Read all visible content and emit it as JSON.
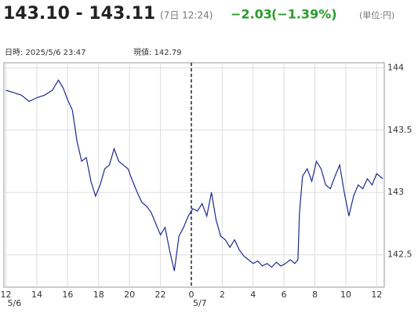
{
  "header": {
    "quote": "143.10 - 143.11",
    "time": "(7日 12:24)",
    "change": "−2.03",
    "change_pct": "(−1.39%)",
    "unit": "(単位:円)",
    "cursor_time": "日時: 2025/5/6 23:47",
    "cursor_value": "現値: 142.79"
  },
  "chart_data": {
    "type": "line",
    "x": [
      0,
      0.5,
      1,
      1.5,
      2,
      2.5,
      3,
      3.4,
      3.7,
      4,
      4.3,
      4.6,
      4.9,
      5.2,
      5.5,
      5.8,
      6.1,
      6.4,
      6.7,
      7,
      7.3,
      7.6,
      7.9,
      8.2,
      8.5,
      8.8,
      9.1,
      9.4,
      9.7,
      10,
      10.3,
      10.6,
      10.9,
      11.2,
      11.5,
      11.8,
      12.1,
      12.4,
      12.7,
      13,
      13.3,
      13.6,
      13.9,
      14.2,
      14.5,
      14.8,
      15.1,
      15.4,
      15.7,
      16,
      16.3,
      16.6,
      16.9,
      17.2,
      17.5,
      17.8,
      18.1,
      18.4,
      18.7,
      18.9,
      19,
      19.2,
      19.5,
      19.8,
      20.1,
      20.4,
      20.7,
      21,
      21.3,
      21.6,
      21.9,
      22.2,
      22.5,
      22.8,
      23.1,
      23.4,
      23.7,
      24,
      24.4
    ],
    "series": [
      {
        "color": "#1c2a8c",
        "values": [
          143.82,
          143.8,
          143.78,
          143.73,
          143.76,
          143.78,
          143.82,
          143.9,
          143.84,
          143.74,
          143.66,
          143.41,
          143.25,
          143.28,
          143.09,
          142.97,
          143.06,
          143.19,
          143.22,
          143.35,
          143.25,
          143.22,
          143.19,
          143.09,
          143,
          142.92,
          142.89,
          142.84,
          142.75,
          142.66,
          142.72,
          142.53,
          142.37,
          142.65,
          142.72,
          142.81,
          142.87,
          142.85,
          142.91,
          142.81,
          143,
          142.78,
          142.65,
          142.62,
          142.56,
          142.62,
          142.54,
          142.49,
          142.46,
          142.43,
          142.45,
          142.41,
          142.43,
          142.4,
          142.44,
          142.41,
          142.43,
          142.46,
          142.43,
          142.46,
          142.84,
          143.13,
          143.19,
          143.09,
          143.25,
          143.19,
          143.06,
          143.03,
          143.13,
          143.22,
          143,
          142.81,
          142.97,
          143.06,
          143.03,
          143.11,
          143.06,
          143.15,
          143.11
        ]
      }
    ],
    "xlim": [
      -0.13,
      24.49
    ],
    "xticks": [
      {
        "value": 0,
        "label": "12"
      },
      {
        "value": 2,
        "label": "14"
      },
      {
        "value": 4,
        "label": "16"
      },
      {
        "value": 6,
        "label": "18"
      },
      {
        "value": 8,
        "label": "20"
      },
      {
        "value": 10,
        "label": "22"
      },
      {
        "value": 12,
        "label": "0"
      },
      {
        "value": 14,
        "label": "2"
      },
      {
        "value": 16,
        "label": "4"
      },
      {
        "value": 18,
        "label": "6"
      },
      {
        "value": 20,
        "label": "8"
      },
      {
        "value": 22,
        "label": "10"
      },
      {
        "value": 24,
        "label": "12"
      }
    ],
    "date_labels": [
      {
        "value": 0,
        "label": "5/6"
      },
      {
        "value": 12,
        "label": "5/7"
      }
    ],
    "divider_x": 12,
    "ylim": [
      142.24,
      144.04
    ],
    "yticks": [
      144,
      143.5,
      143,
      142.5
    ],
    "grid": true
  }
}
